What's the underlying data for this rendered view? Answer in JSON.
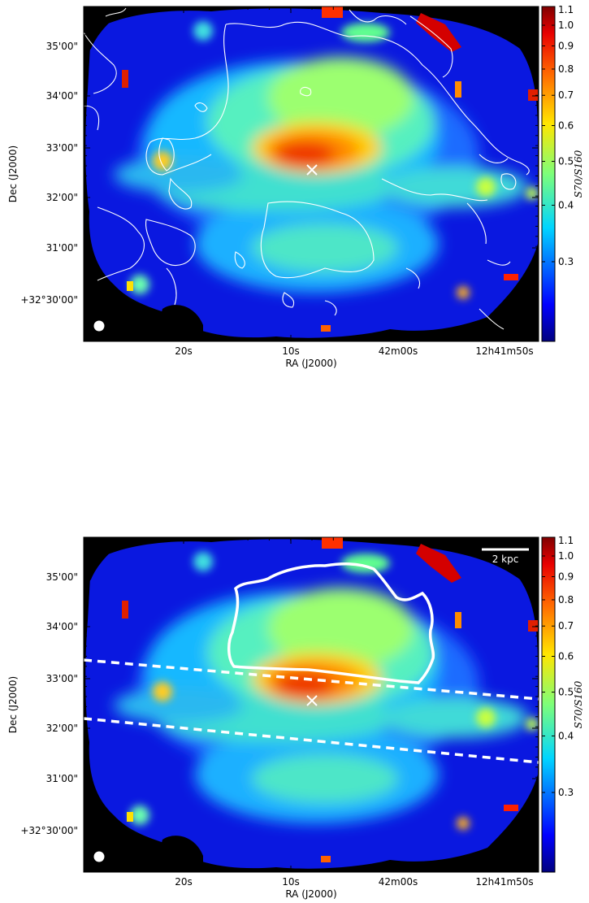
{
  "chart_data": [
    {
      "type": "heatmap",
      "panel": "top",
      "xlabel": "RA (J2000)",
      "ylabel": "Dec (J2000)",
      "xticks": [
        "20s",
        "10s",
        "42m00s",
        "12h41m50s"
      ],
      "yticks": [
        "35'00\"",
        "34'00\"",
        "33'00\"",
        "32'00\"",
        "31'00\"",
        "+32°30'00\""
      ],
      "colorbar": {
        "label": "S70/S160",
        "scale": "log",
        "range": [
          0.2,
          1.1
        ],
        "ticks": [
          "0.3",
          "0.4",
          "0.5",
          "0.6",
          "0.7",
          "0.8",
          "0.9",
          "1.0",
          "1.1"
        ]
      },
      "overlays": [
        "white contours",
        "center cross marker",
        "beam circle"
      ]
    },
    {
      "type": "heatmap",
      "panel": "bottom",
      "xlabel": "RA (J2000)",
      "ylabel": "Dec (J2000)",
      "xticks": [
        "20s",
        "10s",
        "42m00s",
        "12h41m50s"
      ],
      "yticks": [
        "35'00\"",
        "34'00\"",
        "33'00\"",
        "32'00\"",
        "31'00\"",
        "+32°30'00\""
      ],
      "colorbar": {
        "label": "S70/S160",
        "scale": "log",
        "range": [
          0.2,
          1.1
        ],
        "ticks": [
          "0.3",
          "0.4",
          "0.5",
          "0.6",
          "0.7",
          "0.8",
          "0.9",
          "1.0",
          "1.1"
        ]
      },
      "scale_bar": "2 kpc",
      "overlays": [
        "outflow region outline",
        "two dashed disk-boundary lines",
        "center cross marker",
        "beam circle"
      ]
    }
  ]
}
